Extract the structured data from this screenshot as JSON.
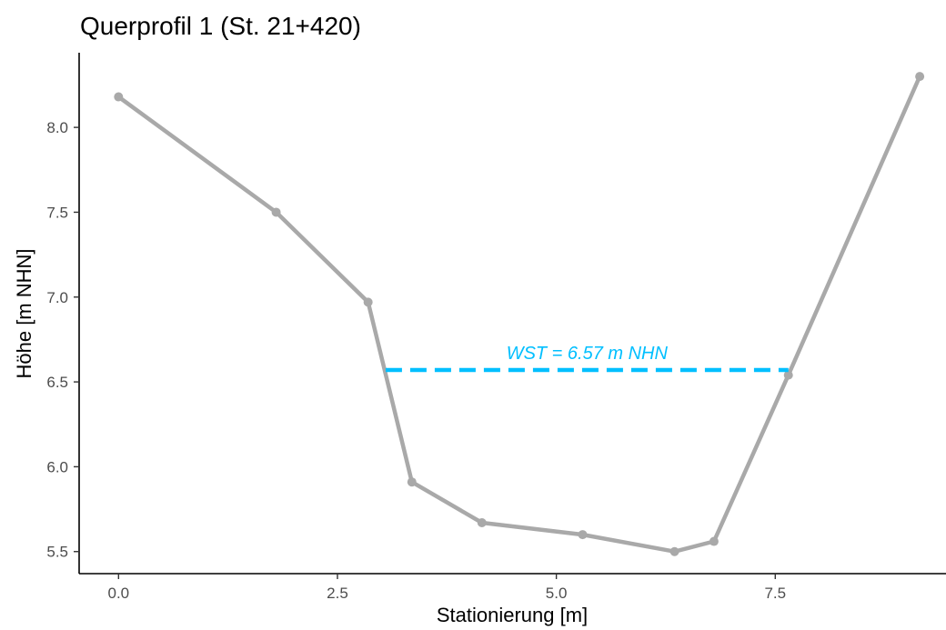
{
  "chart_data": {
    "type": "line",
    "title": "Querprofil 1 (St. 21+420)",
    "xlabel": "Stationierung [m]",
    "ylabel": "Höhe [m NHN]",
    "xlim": [
      -0.45,
      9.45
    ],
    "ylim": [
      5.37,
      8.44
    ],
    "x_ticks": [
      0,
      2.5,
      5,
      7.5
    ],
    "x_tick_labels": [
      "0.0",
      "2.5",
      "5.0",
      "7.5"
    ],
    "y_ticks": [
      5.5,
      6.0,
      6.5,
      7.0,
      7.5,
      8.0
    ],
    "y_tick_labels": [
      "5.5",
      "6.0",
      "6.5",
      "7.0",
      "7.5",
      "8.0"
    ],
    "grid": false,
    "series": [
      {
        "x": [
          0.0,
          1.8,
          2.85,
          3.35,
          4.15,
          5.3,
          6.35,
          6.8,
          7.65,
          9.15
        ],
        "y": [
          8.18,
          7.5,
          6.97,
          5.91,
          5.67,
          5.6,
          5.5,
          5.56,
          6.54,
          8.3
        ],
        "color": "#a9a9a9"
      }
    ],
    "water_level": {
      "y": 6.57,
      "x_start": 3.05,
      "x_end": 7.65,
      "label": "WST = 6.57 m NHN",
      "label_x": 5.35,
      "color": "#00bfff"
    }
  }
}
